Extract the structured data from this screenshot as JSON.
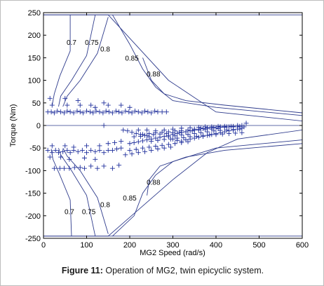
{
  "chart_data": {
    "type": "scatter",
    "title": "",
    "xlabel": "MG2 Speed (rad/s)",
    "ylabel": "Torque (Nm)",
    "xlim": [
      0,
      600
    ],
    "ylim": [
      -250,
      250
    ],
    "xticks": [
      0,
      100,
      200,
      300,
      400,
      500,
      600
    ],
    "yticks": [
      -250,
      -200,
      -150,
      -100,
      -50,
      0,
      50,
      100,
      150,
      200,
      250
    ],
    "grid": false,
    "legend": "none",
    "colors": {
      "contour": "#2e3b8c",
      "marker": "#1f2f9c",
      "axis": "#000000"
    },
    "envelope": [
      [
        0,
        245
      ],
      [
        150,
        245
      ],
      [
        290,
        100
      ],
      [
        400,
        30
      ],
      [
        600,
        10
      ],
      [
        600,
        -10
      ],
      [
        450,
        -30
      ],
      [
        380,
        -60
      ],
      [
        300,
        -120
      ],
      [
        150,
        -245
      ],
      [
        0,
        -245
      ]
    ],
    "contours": [
      {
        "label": "0.7",
        "label_pos": [
          65,
          185
        ],
        "points": [
          [
            62,
            245
          ],
          [
            62,
            165
          ],
          [
            38,
            110
          ],
          [
            25,
            70
          ],
          [
            20,
            44
          ]
        ]
      },
      {
        "label": "0.75",
        "label_pos": [
          112,
          185
        ],
        "points": [
          [
            120,
            245
          ],
          [
            100,
            155
          ],
          [
            65,
            100
          ],
          [
            40,
            65
          ],
          [
            35,
            42
          ]
        ]
      },
      {
        "label": "0.8",
        "label_pos": [
          143,
          170
        ],
        "points": [
          [
            150,
            240
          ],
          [
            125,
            160
          ],
          [
            85,
            100
          ],
          [
            55,
            65
          ],
          [
            45,
            42
          ]
        ]
      },
      {
        "label": "0.85",
        "label_pos": [
          205,
          150
        ],
        "points": [
          [
            160,
            245
          ],
          [
            200,
            180
          ],
          [
            230,
            125
          ],
          [
            260,
            85
          ],
          [
            300,
            55
          ],
          [
            400,
            40
          ],
          [
            600,
            22
          ]
        ]
      },
      {
        "label": "0.88",
        "label_pos": [
          255,
          115
        ],
        "points": [
          [
            230,
            150
          ],
          [
            250,
            100
          ],
          [
            280,
            70
          ],
          [
            330,
            55
          ],
          [
            420,
            45
          ],
          [
            600,
            28
          ]
        ]
      },
      {
        "label": "0.7",
        "label_pos": [
          60,
          -190
        ],
        "points": [
          [
            65,
            -245
          ],
          [
            62,
            -165
          ],
          [
            38,
            -110
          ],
          [
            22,
            -75
          ],
          [
            18,
            -52
          ]
        ]
      },
      {
        "label": "0.75",
        "label_pos": [
          105,
          -190
        ],
        "points": [
          [
            120,
            -245
          ],
          [
            100,
            -155
          ],
          [
            65,
            -100
          ],
          [
            40,
            -65
          ],
          [
            35,
            -50
          ]
        ]
      },
      {
        "label": "0.8",
        "label_pos": [
          143,
          -175
        ],
        "points": [
          [
            150,
            -240
          ],
          [
            125,
            -160
          ],
          [
            85,
            -100
          ],
          [
            55,
            -68
          ],
          [
            45,
            -50
          ]
        ]
      },
      {
        "label": "0.85",
        "label_pos": [
          200,
          -160
        ],
        "points": [
          [
            160,
            -245
          ],
          [
            210,
            -200
          ],
          [
            230,
            -150
          ],
          [
            260,
            -110
          ],
          [
            300,
            -80
          ],
          [
            400,
            -50
          ],
          [
            600,
            -32
          ]
        ]
      },
      {
        "label": "0.88",
        "label_pos": [
          255,
          -125
        ],
        "points": [
          [
            240,
            -155
          ],
          [
            245,
            -120
          ],
          [
            270,
            -90
          ],
          [
            330,
            -70
          ],
          [
            420,
            -55
          ],
          [
            600,
            -40
          ]
        ]
      },
      {
        "label": "",
        "label_pos": [
          0,
          0
        ],
        "points": [
          [
            0,
            245
          ],
          [
            600,
            245
          ]
        ]
      },
      {
        "label": "",
        "label_pos": [
          0,
          0
        ],
        "points": [
          [
            0,
            -245
          ],
          [
            600,
            -245
          ]
        ]
      }
    ],
    "points": [
      [
        10,
        30
      ],
      [
        18,
        30
      ],
      [
        25,
        28
      ],
      [
        32,
        32
      ],
      [
        40,
        30
      ],
      [
        48,
        28
      ],
      [
        55,
        32
      ],
      [
        62,
        30
      ],
      [
        70,
        28
      ],
      [
        78,
        32
      ],
      [
        85,
        30
      ],
      [
        92,
        28
      ],
      [
        100,
        32
      ],
      [
        108,
        30
      ],
      [
        115,
        28
      ],
      [
        122,
        32
      ],
      [
        130,
        30
      ],
      [
        138,
        28
      ],
      [
        145,
        32
      ],
      [
        152,
        30
      ],
      [
        160,
        28
      ],
      [
        168,
        32
      ],
      [
        175,
        30
      ],
      [
        182,
        28
      ],
      [
        190,
        32
      ],
      [
        198,
        30
      ],
      [
        205,
        28
      ],
      [
        212,
        32
      ],
      [
        220,
        30
      ],
      [
        228,
        28
      ],
      [
        235,
        32
      ],
      [
        242,
        30
      ],
      [
        250,
        28
      ],
      [
        258,
        32
      ],
      [
        265,
        30
      ],
      [
        275,
        30
      ],
      [
        285,
        30
      ],
      [
        15,
        60
      ],
      [
        50,
        60
      ],
      [
        80,
        55
      ],
      [
        110,
        45
      ],
      [
        140,
        50
      ],
      [
        150,
        45
      ],
      [
        20,
        45
      ],
      [
        55,
        45
      ],
      [
        85,
        45
      ],
      [
        120,
        40
      ],
      [
        180,
        45
      ],
      [
        200,
        40
      ],
      [
        140,
        0
      ],
      [
        10,
        -55
      ],
      [
        20,
        -60
      ],
      [
        28,
        -55
      ],
      [
        35,
        -60
      ],
      [
        45,
        -58
      ],
      [
        55,
        -55
      ],
      [
        62,
        -60
      ],
      [
        70,
        -55
      ],
      [
        80,
        -58
      ],
      [
        90,
        -55
      ],
      [
        100,
        -60
      ],
      [
        110,
        -55
      ],
      [
        120,
        -58
      ],
      [
        130,
        -55
      ],
      [
        140,
        -60
      ],
      [
        150,
        -55
      ],
      [
        160,
        -55
      ],
      [
        170,
        -52
      ],
      [
        180,
        -50
      ],
      [
        15,
        -70
      ],
      [
        40,
        -70
      ],
      [
        60,
        -75
      ],
      [
        95,
        -72
      ],
      [
        120,
        -75
      ],
      [
        20,
        -45
      ],
      [
        50,
        -45
      ],
      [
        70,
        -48
      ],
      [
        100,
        -45
      ],
      [
        130,
        -45
      ],
      [
        150,
        -40
      ],
      [
        165,
        -38
      ],
      [
        180,
        -35
      ],
      [
        25,
        -95
      ],
      [
        38,
        -95
      ],
      [
        48,
        -95
      ],
      [
        60,
        -95
      ],
      [
        72,
        -93
      ],
      [
        85,
        -93
      ],
      [
        95,
        -95
      ],
      [
        110,
        -90
      ],
      [
        125,
        -95
      ],
      [
        140,
        -90
      ],
      [
        160,
        -95
      ],
      [
        175,
        -88
      ],
      [
        200,
        -40
      ],
      [
        210,
        -38
      ],
      [
        220,
        -36
      ],
      [
        230,
        -34
      ],
      [
        240,
        -32
      ],
      [
        250,
        -30
      ],
      [
        260,
        -28
      ],
      [
        270,
        -26
      ],
      [
        280,
        -24
      ],
      [
        290,
        -22
      ],
      [
        300,
        -20
      ],
      [
        310,
        -18
      ],
      [
        320,
        -16
      ],
      [
        330,
        -14
      ],
      [
        340,
        -12
      ],
      [
        350,
        -10
      ],
      [
        360,
        -8
      ],
      [
        370,
        -7
      ],
      [
        380,
        -6
      ],
      [
        390,
        -5
      ],
      [
        400,
        -5
      ],
      [
        410,
        -4
      ],
      [
        420,
        -4
      ],
      [
        430,
        -3
      ],
      [
        440,
        -3
      ],
      [
        450,
        -3
      ],
      [
        230,
        -20
      ],
      [
        245,
        -18
      ],
      [
        260,
        -16
      ],
      [
        275,
        -15
      ],
      [
        290,
        -14
      ],
      [
        305,
        -12
      ],
      [
        320,
        -12
      ],
      [
        335,
        -10
      ],
      [
        350,
        -8
      ],
      [
        365,
        -6
      ],
      [
        380,
        -5
      ],
      [
        395,
        -4
      ],
      [
        410,
        -3
      ],
      [
        425,
        -3
      ],
      [
        440,
        -2
      ],
      [
        455,
        -2
      ],
      [
        465,
        -3
      ],
      [
        220,
        -10
      ],
      [
        240,
        -10
      ],
      [
        260,
        -12
      ],
      [
        280,
        -10
      ],
      [
        300,
        -8
      ],
      [
        320,
        -6
      ],
      [
        340,
        -5
      ],
      [
        360,
        -4
      ],
      [
        375,
        -3
      ],
      [
        390,
        -3
      ],
      [
        405,
        -2
      ],
      [
        420,
        -2
      ],
      [
        435,
        -2
      ],
      [
        450,
        0
      ],
      [
        460,
        0
      ],
      [
        470,
        5
      ],
      [
        210,
        -25
      ],
      [
        225,
        -24
      ],
      [
        240,
        -22
      ],
      [
        255,
        -20
      ],
      [
        270,
        -19
      ],
      [
        285,
        -18
      ],
      [
        300,
        -16
      ],
      [
        315,
        -15
      ],
      [
        330,
        -14
      ],
      [
        345,
        -12
      ],
      [
        360,
        -10
      ],
      [
        375,
        -9
      ],
      [
        390,
        -8
      ],
      [
        405,
        -7
      ],
      [
        290,
        -25
      ],
      [
        305,
        -23
      ],
      [
        320,
        -21
      ],
      [
        335,
        -20
      ],
      [
        350,
        -18
      ],
      [
        365,
        -16
      ],
      [
        380,
        -14
      ],
      [
        395,
        -12
      ],
      [
        410,
        -11
      ],
      [
        425,
        -10
      ],
      [
        440,
        -9
      ],
      [
        455,
        -8
      ],
      [
        250,
        -35
      ],
      [
        265,
        -33
      ],
      [
        280,
        -31
      ],
      [
        295,
        -30
      ],
      [
        310,
        -28
      ],
      [
        325,
        -27
      ],
      [
        340,
        -25
      ],
      [
        355,
        -24
      ],
      [
        370,
        -22
      ],
      [
        385,
        -21
      ],
      [
        400,
        -20
      ],
      [
        415,
        -19
      ],
      [
        430,
        -18
      ],
      [
        445,
        -17
      ],
      [
        460,
        -16
      ],
      [
        200,
        -55
      ],
      [
        215,
        -53
      ],
      [
        230,
        -50
      ],
      [
        245,
        -48
      ],
      [
        260,
        -46
      ],
      [
        275,
        -44
      ],
      [
        290,
        -42
      ],
      [
        305,
        -40
      ],
      [
        320,
        -38
      ],
      [
        335,
        -36
      ],
      [
        190,
        -65
      ],
      [
        205,
        -63
      ],
      [
        220,
        -60
      ],
      [
        235,
        -58
      ],
      [
        250,
        -55
      ],
      [
        265,
        -52
      ],
      [
        280,
        -50
      ],
      [
        295,
        -48
      ],
      [
        185,
        -10
      ],
      [
        195,
        -12
      ],
      [
        205,
        -15
      ],
      [
        215,
        -18
      ],
      [
        225,
        -20
      ],
      [
        235,
        -22
      ],
      [
        245,
        -25
      ],
      [
        300,
        -30
      ],
      [
        310,
        -33
      ],
      [
        320,
        -35
      ],
      [
        330,
        -32
      ],
      [
        340,
        -30
      ],
      [
        350,
        -28
      ],
      [
        360,
        -26
      ],
      [
        370,
        -24
      ],
      [
        380,
        -22
      ],
      [
        390,
        -20
      ],
      [
        400,
        -18
      ],
      [
        410,
        -16
      ],
      [
        420,
        -14
      ],
      [
        430,
        -12
      ],
      [
        440,
        -10
      ],
      [
        450,
        -8
      ],
      [
        460,
        -6
      ]
    ]
  },
  "caption": {
    "label": "Figure 11:",
    "text": " Operation of MG2, twin epicyclic system."
  }
}
